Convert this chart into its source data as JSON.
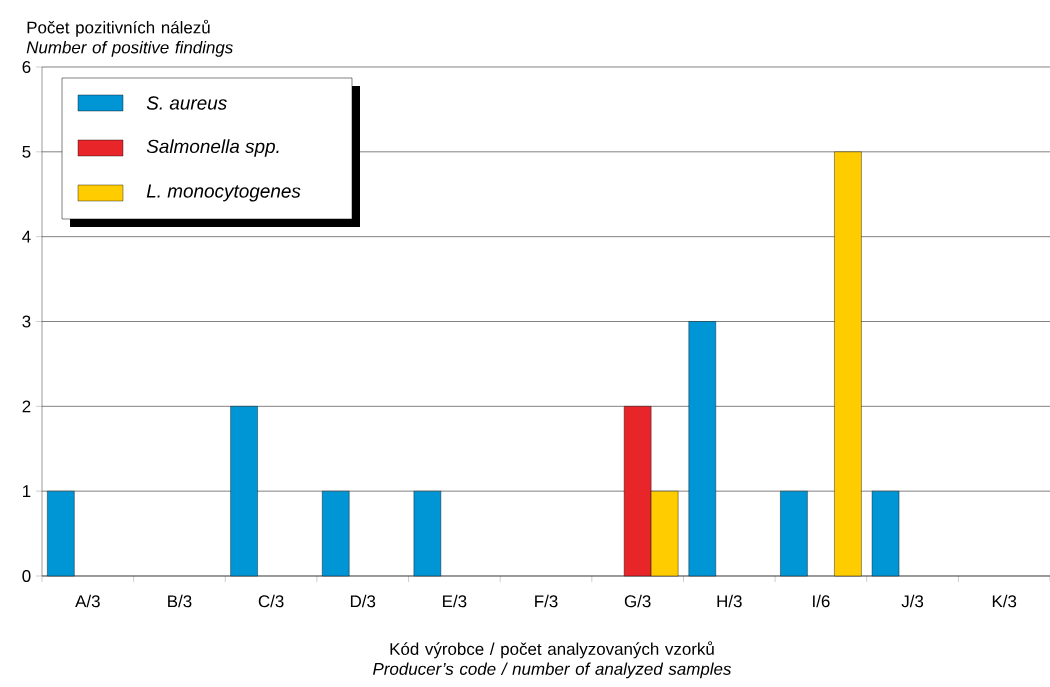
{
  "chart_data": {
    "type": "bar",
    "ylabel": "Počet pozitivních nálezů *Number of positive findings*",
    "xlabel": "Kód výrobce / počet analyzovaných vzorků *Producer’s code / number of analyzed samples*",
    "categories": [
      "A/3",
      "B/3",
      "C/3",
      "D/3",
      "E/3",
      "F/3",
      "G/3",
      "H/3",
      "I/6",
      "J/3",
      "K/3"
    ],
    "series": [
      {
        "name": "S. aureus",
        "color": "#0096d6",
        "values": [
          1,
          0,
          2,
          1,
          1,
          0,
          0,
          3,
          1,
          1,
          0
        ]
      },
      {
        "name": "Salmonella spp.",
        "color": "#e8262a",
        "values": [
          0,
          0,
          0,
          0,
          0,
          0,
          2,
          0,
          0,
          0,
          0
        ]
      },
      {
        "name": "L. monocytogenes",
        "color": "#ffcc00",
        "values": [
          0,
          0,
          0,
          0,
          0,
          0,
          1,
          0,
          5,
          0,
          0
        ]
      }
    ],
    "ylim": [
      0,
      6
    ],
    "yticks": [
      0,
      1,
      2,
      3,
      4,
      5,
      6
    ],
    "grid": "y",
    "legend": "top left"
  }
}
